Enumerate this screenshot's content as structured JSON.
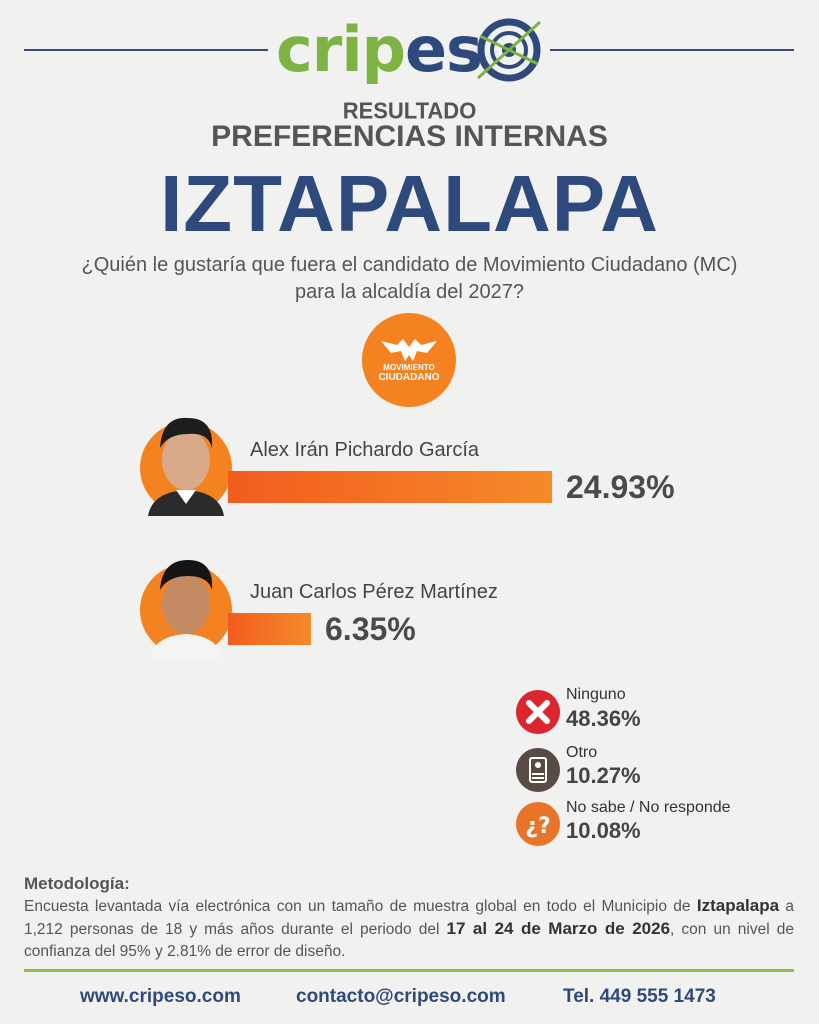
{
  "header": {
    "brand_part1": "crip",
    "brand_part2": "es",
    "subtitle": "RESULTADO",
    "title": "PREFERENCIAS INTERNAS",
    "headline": "IZTAPALAPA",
    "question_line1": "¿Quién le gustaría que fuera el candidato de Movimiento Ciudadano (MC)",
    "question_line2": "para la alcaldía del 2027?"
  },
  "party": {
    "line1": "MOVIMIENTO",
    "line2": "CIUDADANO",
    "color": "#f58220"
  },
  "chart_data": {
    "type": "bar",
    "orientation": "horizontal",
    "categories": [
      "Alex Irán Pichardo García",
      "Juan Carlos Pérez Martínez"
    ],
    "values": [
      24.93,
      6.35
    ],
    "value_labels": [
      "24.93%",
      "6.35%"
    ],
    "bar_color": "#f25c1e"
  },
  "other_responses": [
    {
      "label": "Ninguno",
      "value": "48.36%",
      "icon": "x-icon",
      "color": "#d9262f"
    },
    {
      "label": "Otro",
      "value": "10.27%",
      "icon": "ballot-icon",
      "color": "#5a4a44"
    },
    {
      "label": "No sabe / No responde",
      "value": "10.08%",
      "icon": "question-icon",
      "color": "#e8742a"
    }
  ],
  "methodology": {
    "title": "Metodología:",
    "text_1": "Encuesta levantada vía electrónica con un tamaño de muestra global en todo el Municipio de ",
    "bold_1": "Iztapalapa",
    "text_2": " a 1,212 personas de 18 y más años durante el periodo del ",
    "bold_2": "17 al 24 de Marzo de 2026",
    "text_3": ", con un nivel de confianza del 95% y 2.81% de error de diseño."
  },
  "footer": {
    "website": "www.cripeso.com",
    "email": "contacto@cripeso.com",
    "phone": "Tel. 449 555 1473"
  },
  "colors": {
    "brand_green": "#7cb342",
    "brand_blue": "#2e4a7d",
    "accent_orange": "#f25c1e"
  }
}
